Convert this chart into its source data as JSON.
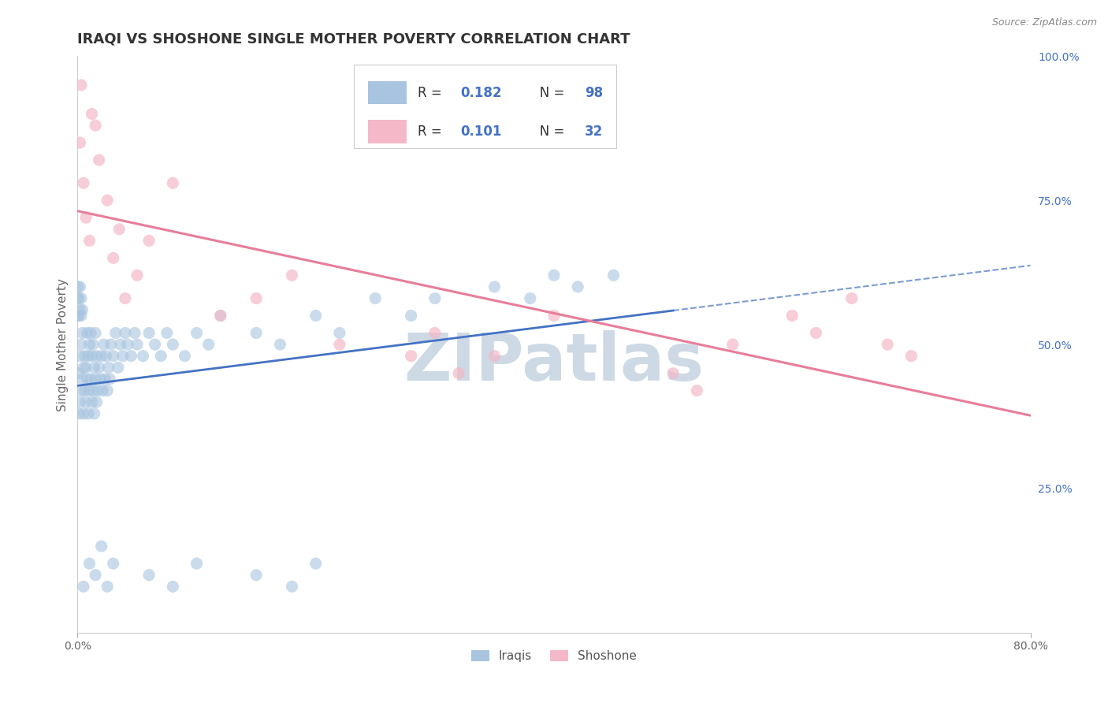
{
  "title": "IRAQI VS SHOSHONE SINGLE MOTHER POVERTY CORRELATION CHART",
  "source_text": "Source: ZipAtlas.com",
  "ylabel": "Single Mother Poverty",
  "xlim": [
    0.0,
    0.8
  ],
  "ylim": [
    0.0,
    1.0
  ],
  "iraqi_R": 0.182,
  "iraqi_N": 98,
  "shoshone_R": 0.101,
  "shoshone_N": 32,
  "iraqi_color": "#a8c4e0",
  "shoshone_color": "#f4b8c8",
  "iraqi_line_color": "#4472c4",
  "shoshone_line_color": "#e87d9a",
  "background_color": "#ffffff",
  "watermark_color": "#cdd9e5",
  "title_fontsize": 13,
  "label_fontsize": 11,
  "tick_fontsize": 10,
  "legend_R_color": "#4472c4",
  "legend_N_color": "#4472c4",
  "legend_label_color": "#333333"
}
